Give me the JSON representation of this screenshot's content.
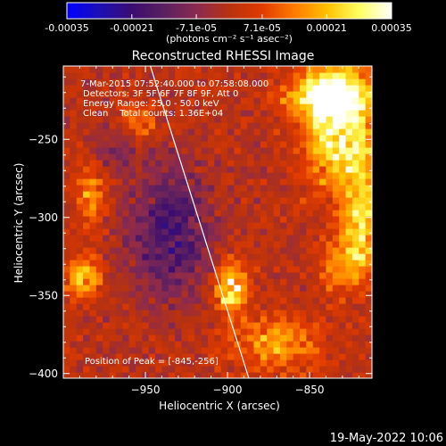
{
  "chart_data": {
    "type": "heatmap",
    "title": "Reconstructed RHESSI Image",
    "xlabel": "Heliocentric X (arcsec)",
    "ylabel": "Heliocentric Y (arcsec)",
    "xlim": [
      -1000,
      -812
    ],
    "ylim": [
      -403,
      -203
    ],
    "xticks": [
      -950,
      -900,
      -850
    ],
    "yticks": [
      -250,
      -300,
      -350,
      -400
    ],
    "grid": false,
    "colorbar": {
      "range": [
        -0.00035,
        0.00035
      ],
      "ticks": [
        "-0.00035",
        "-0.00021",
        "-7.1e-05",
        "7.1e-05",
        "0.00021",
        "0.00035"
      ],
      "tick_values": [
        -0.00035,
        -0.00021,
        -7.1e-05,
        7.1e-05,
        0.00021,
        0.00035
      ],
      "label": "(photons cm⁻² s⁻¹ asec⁻²)",
      "colors": [
        "#0000ff",
        "#1c0fb4",
        "#3b0c70",
        "#5b2060",
        "#8a2a50",
        "#b8320f",
        "#e03a00",
        "#ff7a00",
        "#ffc000",
        "#ffff60",
        "#ffffff"
      ]
    },
    "annotations": [
      "7-Mar-2015 07:52:40.000 to 07:58:08.000",
      "Detectors: 3F 5F 6F 7F 8F 9F, Att 0",
      "Energy Range: 25.0 - 50.0 keV",
      "Clean    Total counts: 1.36E+04"
    ],
    "peak_label": "Position of Peak = [-845,-256]",
    "limb_line": [
      [
        -947,
        -203
      ],
      [
        -887,
        -403
      ]
    ],
    "bright_regions": [
      {
        "x": -832,
        "y": -240,
        "sx": 14,
        "sy": 28,
        "value": 0.00032
      },
      {
        "x": -840,
        "y": -222,
        "sx": 18,
        "sy": 10,
        "value": 0.00026
      },
      {
        "x": -818,
        "y": -300,
        "sx": 8,
        "sy": 24,
        "value": 0.00024
      },
      {
        "x": -898,
        "y": -345,
        "sx": 7,
        "sy": 11,
        "value": 0.0003
      },
      {
        "x": -988,
        "y": -338,
        "sx": 7,
        "sy": 10,
        "value": 0.00022
      },
      {
        "x": -983,
        "y": -287,
        "sx": 6,
        "sy": 14,
        "value": 0.00016
      },
      {
        "x": -955,
        "y": -240,
        "sx": 8,
        "sy": 10,
        "value": 0.00014
      },
      {
        "x": -870,
        "y": -380,
        "sx": 20,
        "sy": 12,
        "value": 0.00018
      },
      {
        "x": -830,
        "y": -330,
        "sx": 10,
        "sy": 12,
        "value": 0.00016
      }
    ],
    "dark_regions": [
      {
        "x": -935,
        "y": -310,
        "sx": 18,
        "sy": 30,
        "value": -0.00018
      },
      {
        "x": -965,
        "y": -255,
        "sx": 10,
        "sy": 10,
        "value": -0.0001
      }
    ]
  },
  "footer": {
    "timestamp": "19-May-2022 10:06"
  }
}
